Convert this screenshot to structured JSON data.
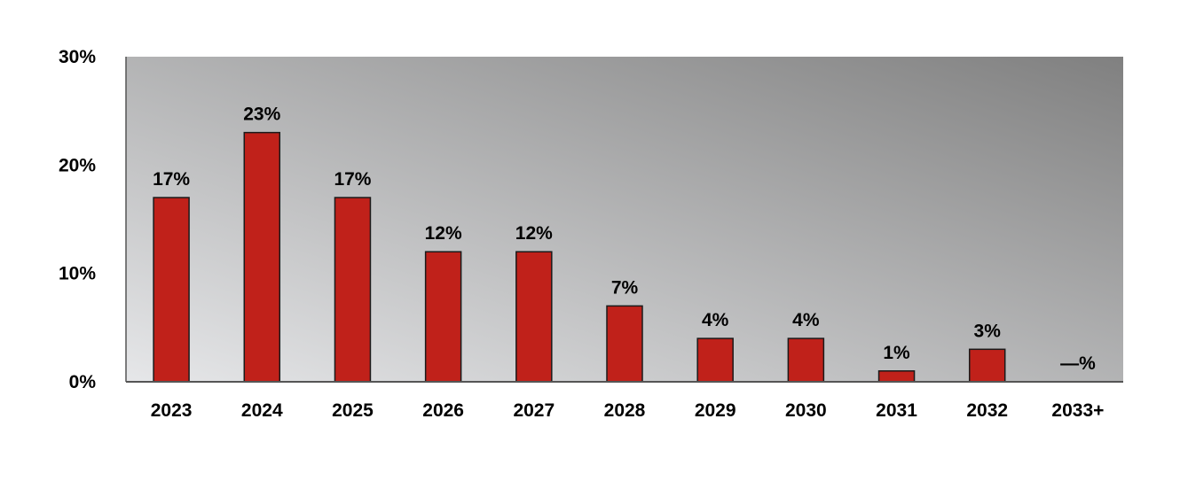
{
  "chart_data": {
    "type": "bar",
    "categories": [
      "2023",
      "2024",
      "2025",
      "2026",
      "2027",
      "2028",
      "2029",
      "2030",
      "2031",
      "2032",
      "2033+"
    ],
    "values": [
      17,
      23,
      17,
      12,
      12,
      7,
      4,
      4,
      1,
      3,
      0
    ],
    "data_labels": [
      "17%",
      "23%",
      "17%",
      "12%",
      "12%",
      "7%",
      "4%",
      "4%",
      "1%",
      "3%",
      "—%"
    ],
    "y_ticks": [
      0,
      10,
      20,
      30
    ],
    "y_tick_labels": [
      "0%",
      "10%",
      "20%",
      "30%"
    ],
    "ylim": [
      0,
      30
    ],
    "title": "",
    "xlabel": "",
    "ylabel": "",
    "grid": false,
    "legend": "none",
    "colors": {
      "bar": "#c0211a",
      "bar_outline": "#1a1a1a",
      "plot_bg_light": "#e6e7e9",
      "plot_bg_dark": "#808080",
      "axis": "#555555"
    }
  }
}
